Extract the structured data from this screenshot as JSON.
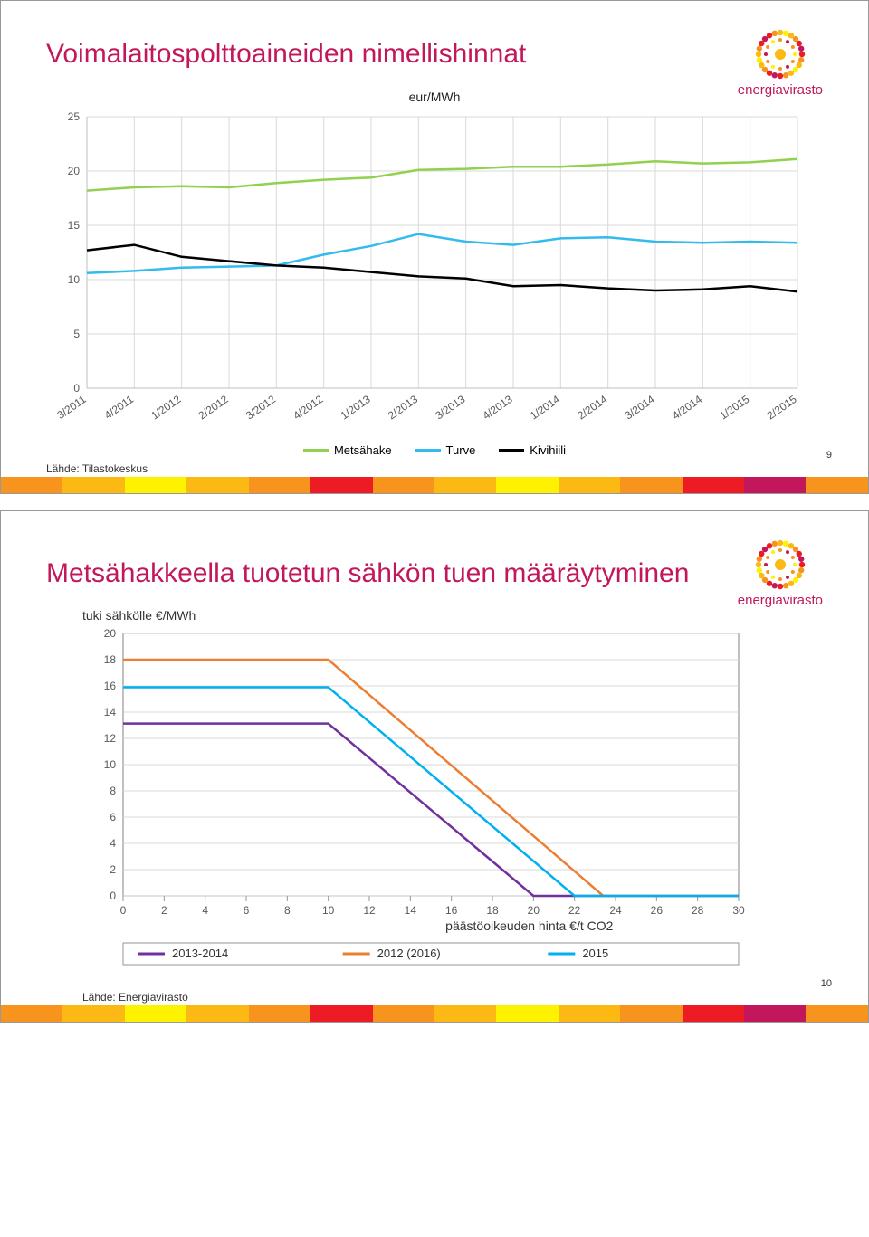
{
  "slide1": {
    "title": "Voimalaitospolttoaineiden nimellishinnat",
    "logo_text": "energiavirasto",
    "page_num": "9",
    "source": "Lähde: Tilastokeskus",
    "chart": {
      "type": "line",
      "unit_label": "eur/MWh",
      "x_categories": [
        "3/2011",
        "4/2011",
        "1/2012",
        "2/2012",
        "3/2012",
        "4/2012",
        "1/2013",
        "2/2013",
        "3/2013",
        "4/2013",
        "1/2014",
        "2/2014",
        "3/2014",
        "4/2014",
        "1/2015",
        "2/2015"
      ],
      "ylim": [
        0,
        25
      ],
      "ytick_step": 5,
      "y_ticks": [
        0,
        5,
        10,
        15,
        20,
        25
      ],
      "grid_color": "#d9d9d9",
      "axis_color": "#bfbfbf",
      "background_color": "#ffffff",
      "line_width": 2.5,
      "series": [
        {
          "name": "Metsähake",
          "color": "#92d050",
          "values": [
            18.2,
            18.5,
            18.6,
            18.5,
            18.9,
            19.2,
            19.4,
            20.1,
            20.2,
            20.4,
            20.4,
            20.6,
            20.9,
            20.7,
            20.8,
            21.1
          ]
        },
        {
          "name": "Turve",
          "color": "#33bbee",
          "values": [
            10.6,
            10.8,
            11.1,
            11.2,
            11.3,
            12.3,
            13.1,
            14.2,
            13.5,
            13.2,
            13.8,
            13.9,
            13.5,
            13.4,
            13.5,
            13.4
          ]
        },
        {
          "name": "Kivihiili",
          "color": "#000000",
          "values": [
            12.7,
            13.2,
            12.1,
            11.7,
            11.3,
            11.1,
            10.7,
            10.3,
            10.1,
            9.4,
            9.5,
            9.2,
            9.0,
            9.1,
            9.4,
            8.9
          ]
        }
      ]
    }
  },
  "slide2": {
    "title": "Metsähakkeella tuotetun sähkön tuen määräytyminen",
    "logo_text": "energiavirasto",
    "page_num": "10",
    "source": "Lähde: Energiavirasto",
    "chart": {
      "type": "line",
      "y_title": "tuki sähkölle €/MWh",
      "x_title": "päästöoikeuden hinta €/t CO2",
      "xlim": [
        0,
        30
      ],
      "ylim": [
        0,
        20
      ],
      "x_ticks": [
        0,
        2,
        4,
        6,
        8,
        10,
        12,
        14,
        16,
        18,
        20,
        22,
        24,
        26,
        28,
        30
      ],
      "y_ticks": [
        0,
        2,
        4,
        6,
        8,
        10,
        12,
        14,
        16,
        18,
        20
      ],
      "border_color": "#969696",
      "grid_color": "#d9d9d9",
      "background_color": "#ffffff",
      "line_width": 2.5,
      "series": [
        {
          "name": "2013-2014",
          "color": "#7030a0",
          "points": [
            [
              0,
              13.13
            ],
            [
              10,
              13.13
            ],
            [
              20,
              0
            ],
            [
              30,
              0
            ]
          ]
        },
        {
          "name": "2012 (2016)",
          "color": "#ed7d31",
          "points": [
            [
              0,
              18
            ],
            [
              10,
              18
            ],
            [
              23.4,
              0
            ],
            [
              30,
              0
            ]
          ]
        },
        {
          "name": "2015",
          "color": "#00b0f0",
          "points": [
            [
              0,
              15.9
            ],
            [
              10,
              15.9
            ],
            [
              22,
              0
            ],
            [
              30,
              0
            ]
          ]
        }
      ]
    }
  },
  "color_bar": [
    "#f7941d",
    "#fdb913",
    "#fff200",
    "#fdb913",
    "#f7941d",
    "#ed1c24",
    "#f7941d",
    "#fdb913",
    "#fff200",
    "#fdb913",
    "#f7941d",
    "#ed1c24",
    "#c2185b",
    "#f7941d"
  ]
}
